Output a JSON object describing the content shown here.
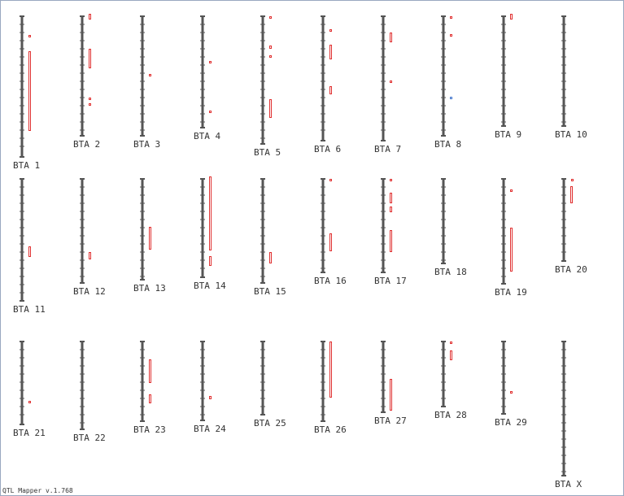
{
  "chromosomes": [
    "BTA 1",
    "BTA 2",
    "BTA 3",
    "BTA 4",
    "BTA 5",
    "BTA 6",
    "BTA 7",
    "BTA 8",
    "BTA 9",
    "BTA 10",
    "BTA 11",
    "BTA 12",
    "BTA 13",
    "BTA 14",
    "BTA 15",
    "BTA 16",
    "BTA 17",
    "BTA 18",
    "BTA 19",
    "BTA 20",
    "BTA 21",
    "BTA 22",
    "BTA 23",
    "BTA 24",
    "BTA 25",
    "BTA 26",
    "BTA 27",
    "BTA 28",
    "BTA 29",
    "BTA X"
  ],
  "footer": "QTL Mapper v.1.768"
}
